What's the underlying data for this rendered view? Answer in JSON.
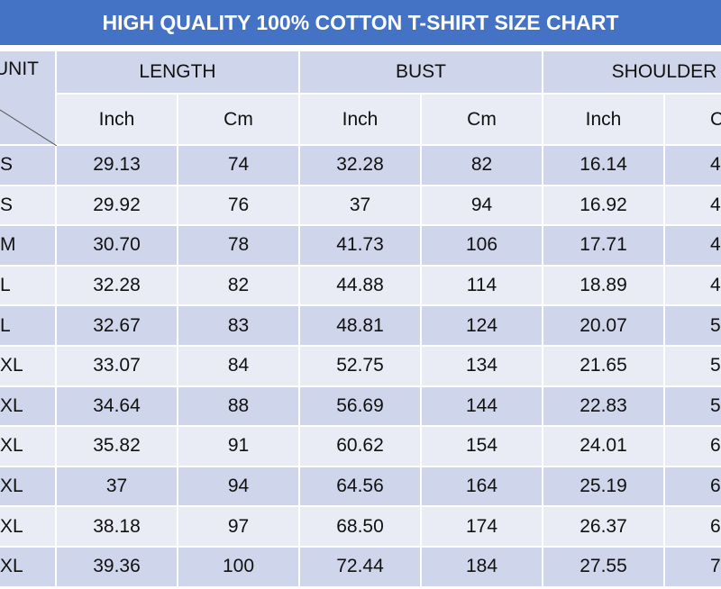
{
  "title": "HIGH QUALITY 100% COTTON T-SHIRT SIZE CHART",
  "header": {
    "unit_label": "UNIT",
    "groups": [
      "LENGTH",
      "BUST",
      "SHOULDER"
    ],
    "subheaders": [
      "Inch",
      "Cm",
      "Inch",
      "Cm",
      "Inch",
      "C"
    ]
  },
  "rows": [
    {
      "size": "S",
      "values": [
        "29.13",
        "74",
        "32.28",
        "82",
        "16.14",
        "4"
      ]
    },
    {
      "size": "S",
      "values": [
        "29.92",
        "76",
        "37",
        "94",
        "16.92",
        "4"
      ]
    },
    {
      "size": "M",
      "values": [
        "30.70",
        "78",
        "41.73",
        "106",
        "17.71",
        "4"
      ]
    },
    {
      "size": "L",
      "values": [
        "32.28",
        "82",
        "44.88",
        "114",
        "18.89",
        "4"
      ]
    },
    {
      "size": "L",
      "values": [
        "32.67",
        "83",
        "48.81",
        "124",
        "20.07",
        "5"
      ]
    },
    {
      "size": "XL",
      "values": [
        "33.07",
        "84",
        "52.75",
        "134",
        "21.65",
        "5"
      ]
    },
    {
      "size": "XL",
      "values": [
        "34.64",
        "88",
        "56.69",
        "144",
        "22.83",
        "5"
      ]
    },
    {
      "size": "XL",
      "values": [
        "35.82",
        "91",
        "60.62",
        "154",
        "24.01",
        "6"
      ]
    },
    {
      "size": "XL",
      "values": [
        "37",
        "94",
        "64.56",
        "164",
        "25.19",
        "6"
      ]
    },
    {
      "size": "XL",
      "values": [
        "38.18",
        "97",
        "68.50",
        "174",
        "26.37",
        "6"
      ]
    },
    {
      "size": "XL",
      "values": [
        "39.36",
        "100",
        "72.44",
        "184",
        "27.55",
        "7"
      ]
    }
  ],
  "colors": {
    "title_bg": "#4472c4",
    "row_dark": "#cfd5ea",
    "row_light": "#e9ebf5"
  }
}
